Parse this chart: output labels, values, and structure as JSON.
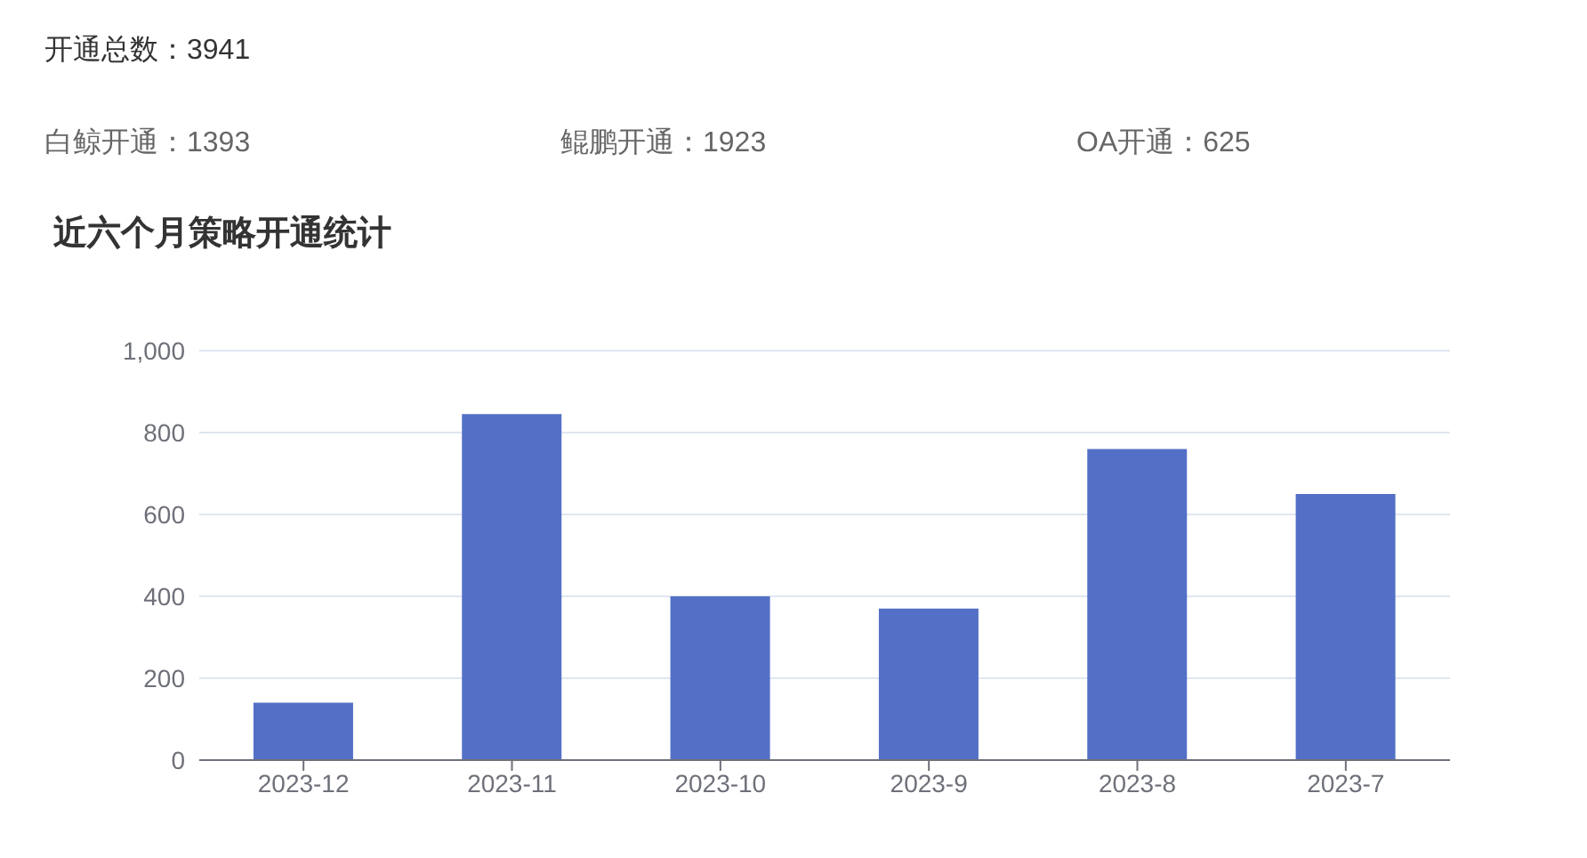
{
  "chart_data": {
    "type": "bar",
    "title": "近六个月策略开通统计",
    "annotations": [
      "开通总数：3941",
      "白鲸开通：1393",
      "鲲鹏开通：1923",
      "OA开通：625"
    ],
    "categories": [
      "2023-12",
      "2023-11",
      "2023-10",
      "2023-9",
      "2023-8",
      "2023-7"
    ],
    "values": [
      140,
      845,
      400,
      370,
      760,
      650
    ],
    "color": "#5470c6",
    "ylim": [
      0,
      1000
    ],
    "yticks": [
      0,
      200,
      400,
      600,
      800,
      {
        "value": 1000,
        "label": "1,000"
      }
    ],
    "grid": "y"
  }
}
